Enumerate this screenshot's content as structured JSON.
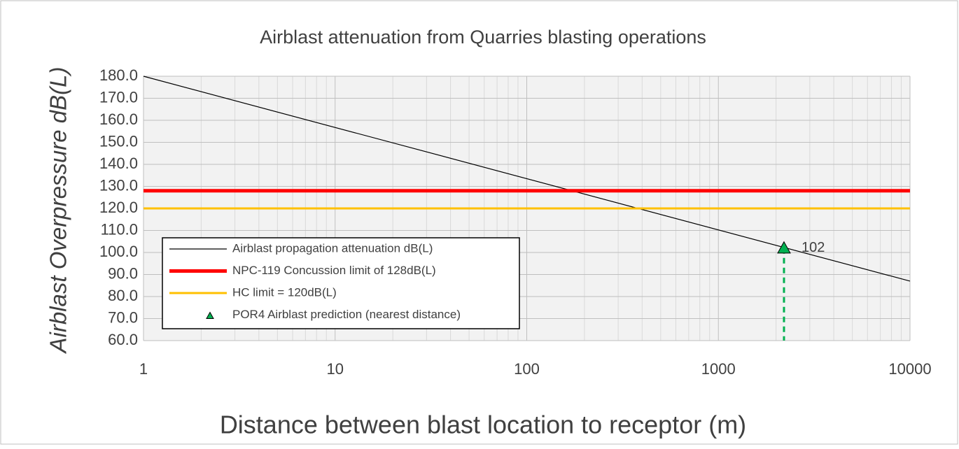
{
  "chart_data": {
    "type": "line",
    "title": "Airblast attenuation from Quarries blasting operations",
    "x_label": "Distance between blast location to receptor (m)",
    "y_label": "Airblast Overpressure dB(L)",
    "xscale": "log",
    "xlim": [
      1,
      10000
    ],
    "xticks": [
      1,
      10,
      100,
      1000,
      10000
    ],
    "xminorticks": [
      2,
      3,
      4,
      5,
      6,
      7,
      8,
      9,
      20,
      30,
      40,
      50,
      60,
      70,
      80,
      90,
      200,
      300,
      400,
      500,
      600,
      700,
      800,
      900,
      2000,
      3000,
      4000,
      5000,
      6000,
      7000,
      8000,
      9000
    ],
    "ylim": [
      60,
      180
    ],
    "yticks": [
      {
        "value": 60,
        "label": "60.0"
      },
      {
        "value": 70,
        "label": "70.0"
      },
      {
        "value": 80,
        "label": "80.0"
      },
      {
        "value": 90,
        "label": "90.0"
      },
      {
        "value": 100,
        "label": "100.0"
      },
      {
        "value": 110,
        "label": "110.0"
      },
      {
        "value": 120,
        "label": "120.0"
      },
      {
        "value": 130,
        "label": "130.0"
      },
      {
        "value": 140,
        "label": "140.0"
      },
      {
        "value": 150,
        "label": "150.0"
      },
      {
        "value": 160,
        "label": "160.0"
      },
      {
        "value": 170,
        "label": "170.0"
      },
      {
        "value": 180,
        "label": "180.0"
      }
    ],
    "grid": true,
    "legend": "lower left",
    "series": [
      {
        "name": "Airblast propagation attenuation dB(L)",
        "color": "#000000",
        "width": 1.2,
        "x": [
          1,
          10000
        ],
        "values": [
          180,
          87
        ]
      },
      {
        "name": "NPC-119 Concussion limit of 128dB(L)",
        "color": "#ff0000",
        "width": 5,
        "x": [
          1,
          10000
        ],
        "values": [
          128,
          128
        ]
      },
      {
        "name": "HC limit = 120dB(L)",
        "color": "#ffc000",
        "width": 3,
        "x": [
          1,
          10000
        ],
        "values": [
          120,
          120
        ]
      },
      {
        "name": "POR4 Airblast prediction (nearest distance)",
        "type": "scatter",
        "marker": "triangle",
        "droplines": true,
        "color": "#00b050",
        "x": [
          2200
        ],
        "values": [
          102
        ],
        "value_labels": [
          "102"
        ]
      }
    ]
  }
}
